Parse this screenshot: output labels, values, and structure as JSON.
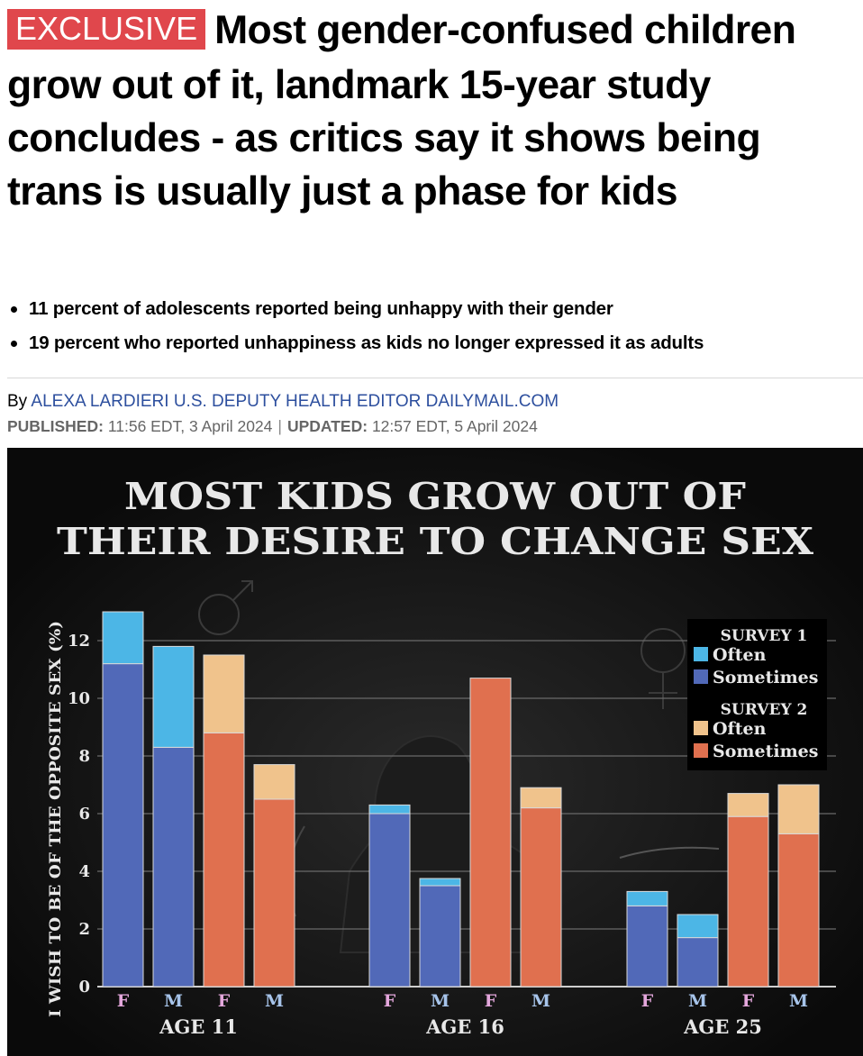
{
  "article": {
    "badge": "EXCLUSIVE",
    "headline": "Most gender-confused children grow out of it, landmark 15-year study concludes - as critics say it shows being trans is usually just a phase for kids",
    "bullets": [
      "11 percent of adolescents reported being unhappy with their gender",
      "19 percent who reported unhappiness as kids no longer expressed it as adults"
    ],
    "byline_prefix": "By",
    "author": "ALEXA LARDIERI U.S. DEPUTY HEALTH EDITOR DAILYMAIL.COM",
    "published_label": "PUBLISHED:",
    "published_value": "11:56 EDT, 3 April 2024",
    "separator": "|",
    "updated_label": "UPDATED:",
    "updated_value": "12:57 EDT, 5 April 2024"
  },
  "colors": {
    "badge_bg": "#e0474c",
    "author_link": "#2d4f9e",
    "survey1_often": "#4cb6e6",
    "survey1_sometimes": "#5169b8",
    "survey2_often": "#f0c38c",
    "survey2_sometimes": "#e0704f",
    "label_female": "#e4a7dc",
    "label_male": "#a7c4ea"
  },
  "chart_data": {
    "type": "bar",
    "stacked": true,
    "title": "MOST KIDS GROW OUT OF THEIR DESIRE TO CHANGE SEX",
    "title_lines": [
      "MOST KIDS GROW OUT OF",
      "THEIR DESIRE TO CHANGE SEX"
    ],
    "ylabel": "I WISH TO BE OF THE OPPOSITE SEX (%)",
    "ylim": [
      0,
      13.5
    ],
    "yticks": [
      "0",
      "2",
      "4",
      "6",
      "8",
      "10",
      "12"
    ],
    "grid": true,
    "legend_position": "top-right",
    "legend": [
      {
        "heading": "SURVEY 1",
        "entries": [
          "Often",
          "Sometimes"
        ]
      },
      {
        "heading": "SURVEY 2",
        "entries": [
          "Often",
          "Sometimes"
        ]
      }
    ],
    "groups": [
      {
        "label": "AGE 11",
        "bars": [
          {
            "sex": "F",
            "survey": 1,
            "sometimes": 11.2,
            "often": 1.8
          },
          {
            "sex": "M",
            "survey": 1,
            "sometimes": 8.3,
            "often": 3.5
          },
          {
            "sex": "F",
            "survey": 2,
            "sometimes": 8.8,
            "often": 2.7
          },
          {
            "sex": "M",
            "survey": 2,
            "sometimes": 6.5,
            "often": 1.2
          }
        ]
      },
      {
        "label": "AGE 16",
        "bars": [
          {
            "sex": "F",
            "survey": 1,
            "sometimes": 6.0,
            "often": 0.3
          },
          {
            "sex": "M",
            "survey": 1,
            "sometimes": 3.5,
            "often": 0.25
          },
          {
            "sex": "F",
            "survey": 2,
            "sometimes": 10.7,
            "often": 0.0
          },
          {
            "sex": "M",
            "survey": 2,
            "sometimes": 6.2,
            "often": 0.7
          }
        ]
      },
      {
        "label": "AGE 25",
        "bars": [
          {
            "sex": "F",
            "survey": 1,
            "sometimes": 2.8,
            "often": 0.5
          },
          {
            "sex": "M",
            "survey": 1,
            "sometimes": 1.7,
            "often": 0.8
          },
          {
            "sex": "F",
            "survey": 2,
            "sometimes": 5.9,
            "often": 0.8
          },
          {
            "sex": "M",
            "survey": 2,
            "sometimes": 5.3,
            "often": 1.7
          }
        ]
      }
    ]
  }
}
